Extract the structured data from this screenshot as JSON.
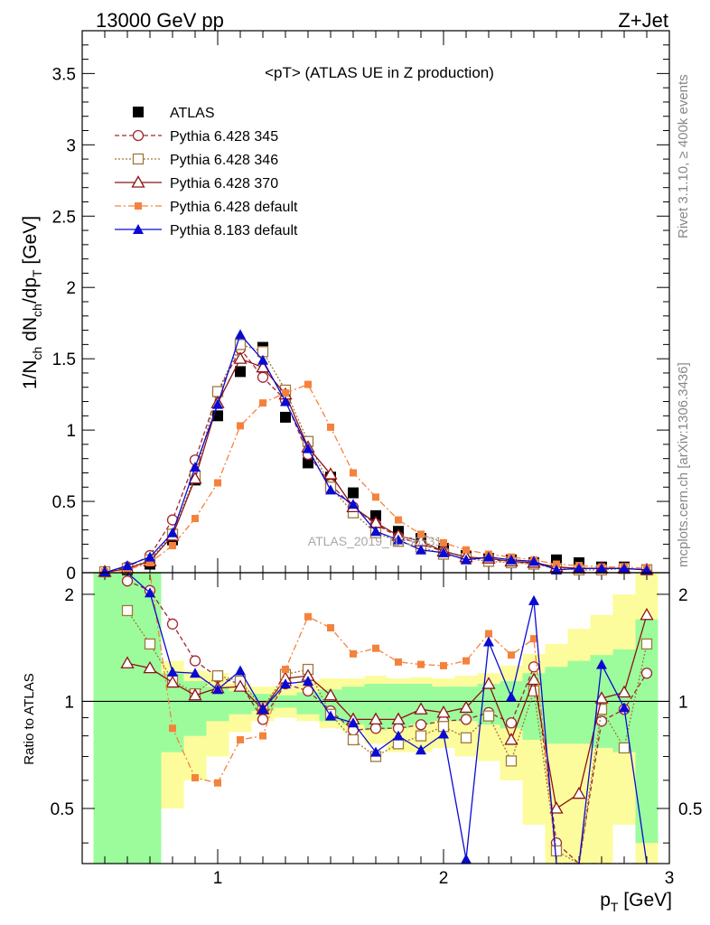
{
  "header": {
    "left": "13000 GeV pp",
    "right": "Z+Jet"
  },
  "plot_title": "<pT> (ATLAS UE in Z production)",
  "side_labels": {
    "rivet": "Rivet 3.1.10, ≥ 400k events",
    "mcplots": "mcplots.cern.ch [arXiv:1306.3436]"
  },
  "watermark": "ATLAS_2019_I1736531",
  "ratio_ylabel": "Ratio to ATLAS",
  "colors": {
    "ATLAS": "#000000",
    "p345": "#a02830",
    "p346": "#a0783c",
    "p370": "#8c1414",
    "p6def": "#f5823c",
    "p8def": "#0a0ad2",
    "band_green": "#9cfc9c",
    "band_yellow": "#fcfc9c"
  },
  "chart_data": [
    {
      "type": "scatter",
      "title": "<pT> (ATLAS UE in Z production)",
      "xlabel": "p_T [GeV]",
      "ylabel": "1/N_ch dN_ch/dp_T [GeV]",
      "xlim": [
        0.4,
        3.0
      ],
      "ylim": [
        0,
        3.8
      ],
      "xticks": [
        1,
        2,
        3
      ],
      "yticks": [
        0,
        0.5,
        1,
        1.5,
        2,
        2.5,
        3,
        3.5
      ],
      "ytick_labels": [
        "0",
        "0.5",
        "1",
        "1.5",
        "2",
        "2.5",
        "3",
        "3.5"
      ],
      "x": [
        0.5,
        0.6,
        0.7,
        0.8,
        0.9,
        1.0,
        1.1,
        1.2,
        1.3,
        1.4,
        1.5,
        1.6,
        1.7,
        1.8,
        1.9,
        2.0,
        2.1,
        2.2,
        2.3,
        2.4,
        2.5,
        2.6,
        2.7,
        2.8,
        2.9
      ],
      "series": [
        {
          "name": "ATLAS",
          "marker": "square-filled",
          "line": "none",
          "values": [
            0.0,
            0.02,
            0.06,
            0.23,
            0.65,
            1.1,
            1.41,
            1.58,
            1.09,
            0.77,
            0.67,
            0.56,
            0.4,
            0.29,
            0.24,
            0.17,
            0.12,
            0.1,
            0.09,
            0.07,
            0.09,
            0.07,
            0.04,
            0.04,
            0.02
          ]
        },
        {
          "name": "Pythia 6.428 345",
          "marker": "circle-open",
          "line": "dashed",
          "values": [
            0.0,
            0.04,
            0.12,
            0.37,
            0.79,
            1.26,
            1.57,
            1.37,
            1.21,
            0.83,
            0.62,
            0.46,
            0.34,
            0.25,
            0.2,
            0.15,
            0.11,
            0.09,
            0.08,
            0.06,
            0.04,
            0.03,
            0.03,
            0.03,
            0.02
          ]
        },
        {
          "name": "Pythia 6.428 346",
          "marker": "square-open",
          "line": "dotted",
          "values": [
            0.0,
            0.03,
            0.09,
            0.27,
            0.68,
            1.27,
            1.6,
            1.55,
            1.28,
            0.92,
            0.6,
            0.42,
            0.28,
            0.22,
            0.18,
            0.13,
            0.1,
            0.08,
            0.07,
            0.06,
            0.03,
            0.02,
            0.02,
            0.03,
            0.02
          ]
        },
        {
          "name": "Pythia 6.428 370",
          "marker": "triangle-open",
          "line": "solid",
          "values": [
            0.0,
            0.03,
            0.08,
            0.26,
            0.66,
            1.19,
            1.5,
            1.44,
            1.25,
            0.88,
            0.69,
            0.46,
            0.35,
            0.26,
            0.22,
            0.15,
            0.11,
            0.1,
            0.08,
            0.07,
            0.04,
            0.03,
            0.03,
            0.03,
            0.02
          ]
        },
        {
          "name": "Pythia 6.428 default",
          "marker": "square-filled-small",
          "line": "dashdot",
          "values": [
            0.0,
            0.02,
            0.07,
            0.19,
            0.38,
            0.63,
            1.03,
            1.19,
            1.26,
            1.32,
            1.02,
            0.7,
            0.53,
            0.37,
            0.27,
            0.21,
            0.16,
            0.13,
            0.11,
            0.09,
            0.06,
            0.05,
            0.04,
            0.04,
            0.03
          ]
        },
        {
          "name": "Pythia 8.183 default",
          "marker": "triangle-filled",
          "line": "solid",
          "values": [
            0.0,
            0.05,
            0.11,
            0.28,
            0.74,
            1.18,
            1.67,
            1.49,
            1.2,
            0.87,
            0.58,
            0.48,
            0.29,
            0.23,
            0.16,
            0.14,
            0.09,
            0.11,
            0.09,
            0.08,
            0.02,
            0.03,
            0.03,
            0.03,
            0.02
          ]
        }
      ]
    },
    {
      "type": "scatter",
      "ylabel": "Ratio to ATLAS",
      "xlabel": "p_T [GeV]",
      "xlim": [
        0.4,
        3.0
      ],
      "ylim": [
        0.35,
        2.3
      ],
      "yticks": [
        0.5,
        1,
        2
      ],
      "ytick_labels": [
        "0.5",
        "1",
        "2"
      ],
      "xticks": [
        1,
        2,
        3
      ],
      "xtick_labels": [
        "1",
        "2",
        "3"
      ],
      "reference_line": 1,
      "band_edges": [
        0.45,
        0.55,
        0.65,
        0.75,
        0.85,
        0.95,
        1.05,
        1.15,
        1.25,
        1.35,
        1.45,
        1.55,
        1.65,
        1.75,
        1.85,
        1.95,
        2.05,
        2.15,
        2.25,
        2.35,
        2.45,
        2.55,
        2.65,
        2.75,
        2.85,
        2.95
      ],
      "band_stat_lo": [
        0.35,
        0.35,
        0.35,
        0.72,
        0.8,
        0.88,
        0.92,
        0.94,
        0.96,
        0.92,
        0.88,
        0.86,
        0.83,
        0.84,
        0.86,
        0.88,
        0.88,
        0.86,
        0.84,
        0.78,
        0.76,
        0.76,
        0.74,
        0.72,
        0.4
      ],
      "band_stat_hi": [
        2.3,
        2.3,
        2.3,
        1.2,
        1.14,
        1.1,
        1.07,
        1.05,
        1.04,
        1.06,
        1.08,
        1.1,
        1.12,
        1.12,
        1.12,
        1.1,
        1.1,
        1.12,
        1.14,
        1.2,
        1.25,
        1.3,
        1.35,
        1.4,
        1.7
      ],
      "band_syst_lo": [
        0.35,
        0.35,
        0.35,
        0.5,
        0.6,
        0.7,
        0.82,
        0.88,
        0.9,
        0.88,
        0.84,
        0.82,
        0.76,
        0.72,
        0.72,
        0.74,
        0.7,
        0.68,
        0.6,
        0.45,
        0.35,
        0.35,
        0.35,
        0.45,
        0.35
      ],
      "band_syst_hi": [
        2.3,
        2.3,
        2.3,
        1.3,
        1.22,
        1.2,
        1.12,
        1.1,
        1.1,
        1.14,
        1.16,
        1.16,
        1.18,
        1.16,
        1.17,
        1.16,
        1.18,
        1.2,
        1.26,
        1.36,
        1.45,
        1.6,
        1.75,
        2.0,
        2.3
      ],
      "x": [
        0.6,
        0.7,
        0.8,
        0.9,
        1.0,
        1.1,
        1.2,
        1.3,
        1.4,
        1.5,
        1.6,
        1.7,
        1.8,
        1.9,
        2.0,
        2.1,
        2.2,
        2.3,
        2.4,
        2.5,
        2.6,
        2.7,
        2.8,
        2.9
      ],
      "series": [
        {
          "name": "Pythia 6.428 345",
          "values": [
            2.18,
            2.05,
            1.65,
            1.3,
            1.17,
            1.12,
            0.89,
            1.12,
            1.07,
            0.94,
            0.83,
            0.84,
            0.84,
            0.86,
            0.88,
            0.89,
            0.93,
            0.87,
            1.25,
            0.4,
            0.35,
            0.88,
            0.95,
            1.2
          ]
        },
        {
          "name": "Pythia 6.428 346",
          "values": [
            1.8,
            1.45,
            1.15,
            1.05,
            1.18,
            1.14,
            0.96,
            1.19,
            1.23,
            0.92,
            0.78,
            0.7,
            0.76,
            0.8,
            0.85,
            0.79,
            0.91,
            0.68,
            1.07,
            0.38,
            0.35,
            0.95,
            0.74,
            1.45
          ]
        },
        {
          "name": "Pythia 6.428 370",
          "values": [
            1.28,
            1.24,
            1.13,
            1.04,
            1.09,
            1.1,
            0.95,
            1.16,
            1.18,
            1.04,
            0.89,
            0.89,
            0.89,
            0.95,
            0.93,
            0.96,
            1.12,
            0.78,
            1.15,
            0.5,
            0.55,
            1.02,
            1.06,
            1.75
          ]
        },
        {
          "name": "Pythia 6.428 default",
          "values": [
            2.3,
            2.3,
            0.84,
            0.61,
            0.59,
            0.78,
            0.8,
            1.23,
            1.73,
            1.61,
            1.36,
            1.41,
            1.29,
            1.27,
            1.26,
            1.3,
            1.55,
            1.35,
            1.5,
            0.35,
            0.35,
            0.35,
            0.35,
            0.35
          ]
        },
        {
          "name": "Pythia 8.183 default",
          "values": [
            2.3,
            2.02,
            1.21,
            1.2,
            1.08,
            1.22,
            0.95,
            1.12,
            1.14,
            0.91,
            0.87,
            0.72,
            0.8,
            0.73,
            0.81,
            0.36,
            1.47,
            1.03,
            1.92,
            0.35,
            0.35,
            1.27,
            0.96,
            0.35
          ]
        }
      ]
    }
  ]
}
